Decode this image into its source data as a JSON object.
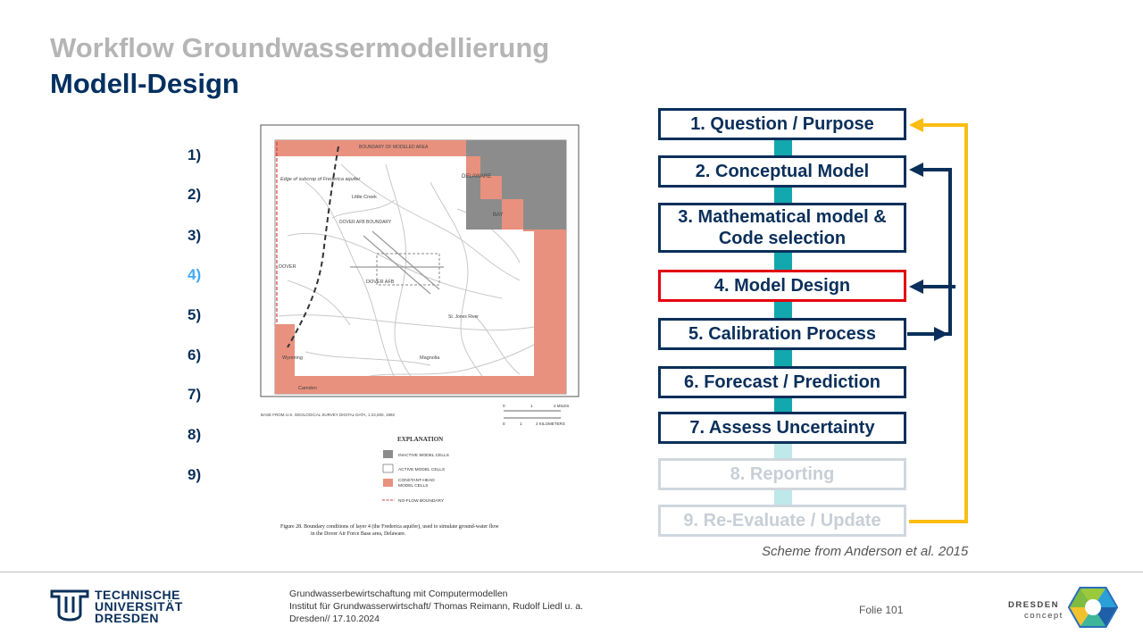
{
  "title": "Workflow Groundwassermodellierung",
  "subtitle": "Modell-Design",
  "steps_numbers": [
    "1)",
    "2)",
    "3)",
    "4)",
    "5)",
    "6)",
    "7)",
    "8)",
    "9)"
  ],
  "active_step_index": 4,
  "map": {
    "boundary_label": "BOUNDARY OF MODELED AREA",
    "labels": {
      "subcrop": "Edge of subcrop of Frederica aquifer",
      "little_creek": "Little Creek",
      "delaware": "DELAWARE",
      "bay": "BAY",
      "dover_afb_boundary": "DOVER AFB BOUNDARY",
      "dover": "DOVER",
      "dover_afb": "DOVER AFB",
      "wyoming": "Wyoming",
      "camden": "Camden",
      "magnolia": "Magnolia",
      "st_jones": "St. Jones River"
    },
    "base_note": "BASE FROM U.S. GEOLOGICAL SURVEY DIGITAL DATA, 1:24,000, 1992",
    "scale_miles": [
      "0",
      "1",
      "2 MILES"
    ],
    "scale_km": [
      "0",
      "1",
      "2 KILOMETERS"
    ],
    "legend_title": "EXPLANATION",
    "legend_items": [
      {
        "label": "INACTIVE MODEL CELLS",
        "color": "#8c8c8c"
      },
      {
        "label": "ACTIVE MODEL CELLS",
        "color": "#ffffff"
      },
      {
        "label": "CONSTANT-HEAD MODEL CELLS",
        "color": "#e8917e"
      },
      {
        "label": "NO-FLOW BOUNDARY",
        "color": "#d04040"
      }
    ],
    "caption_line1": "Figure 28.  Boundary conditions of layer 4 (the Frederica aquifer), used to simulate ground-water flow",
    "caption_line2": "in the Dover Air Force Base area, Delaware."
  },
  "workflow": [
    {
      "label": "1. Question  / Purpose"
    },
    {
      "label": "2. Conceptual  Model"
    },
    {
      "label": "3. Mathematical model & Code selection"
    },
    {
      "label": "4. Model Design"
    },
    {
      "label": "5. Calibration  Process"
    },
    {
      "label": "6. Forecast / Prediction"
    },
    {
      "label": "7. Assess  Uncertainty"
    },
    {
      "label": "8. Reporting"
    },
    {
      "label": "9. Re-Evaluate / Update"
    }
  ],
  "colors": {
    "navy": "#0a2f5a",
    "teal": "#13a8ae",
    "teal_faded": "#bfe8ea",
    "gold": "#fbbd12",
    "red": "#e3000f"
  },
  "source_caption": "Scheme from Anderson et al. 2015",
  "footer": {
    "line1": "Grundwasserbewirtschaftung mit Computermodellen",
    "line2": "Institut für Grundwasserwirtschaft/ Thomas Reimann, Rudolf Liedl u. a.",
    "line3": "Dresden// 17.10.2024",
    "slide": "Folie 101",
    "tud_line1": "TECHNISCHE",
    "tud_line2": "UNIVERSITÄT",
    "tud_line3": "DRESDEN",
    "dc_line1": "DRESDEN",
    "dc_line2": "concept"
  }
}
